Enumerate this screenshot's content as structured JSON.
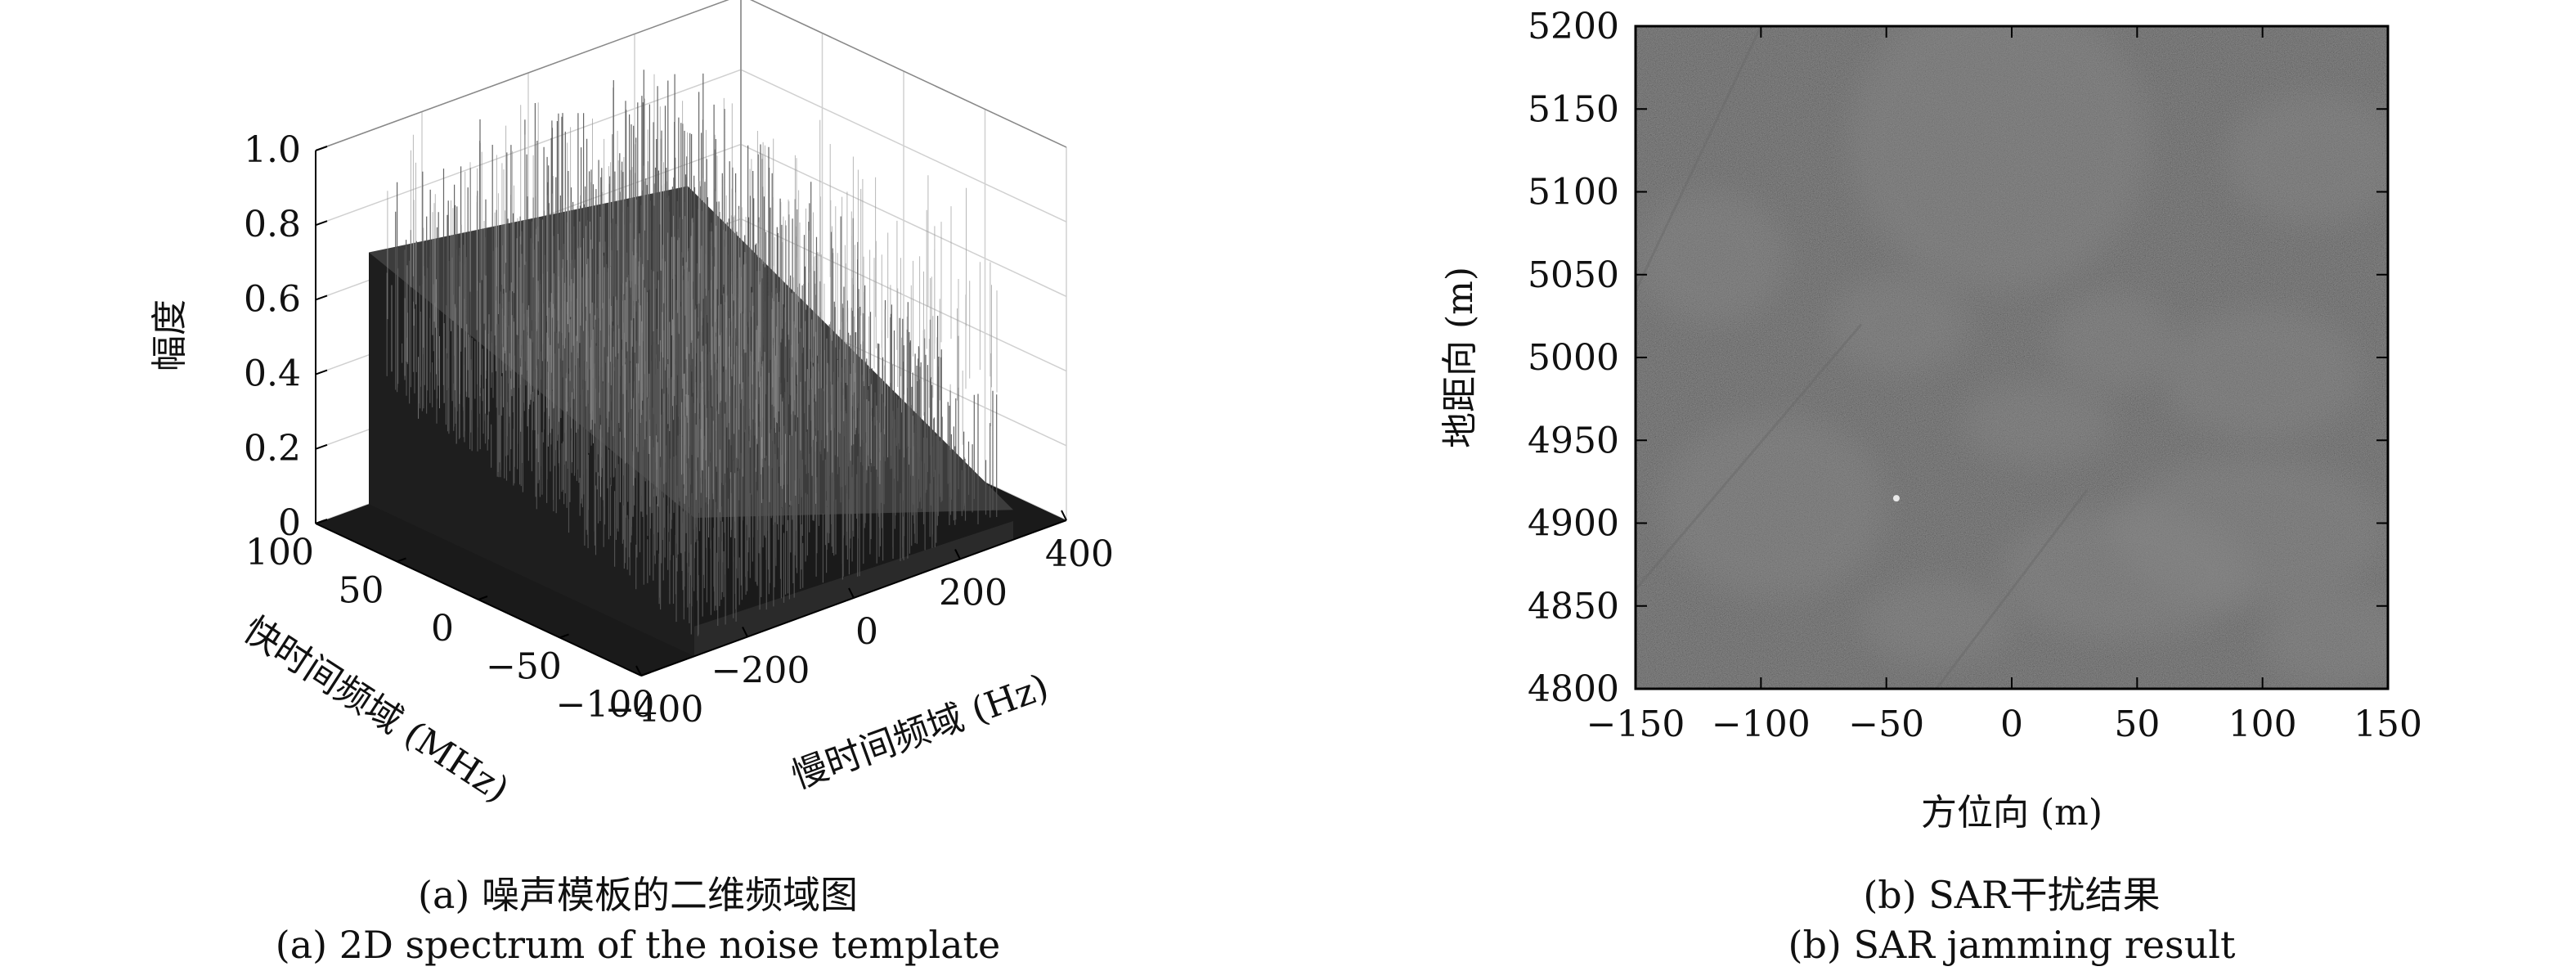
{
  "chart_data": [
    {
      "type": "surface3d",
      "zlabel": "幅度",
      "xlabel": "快时间频域 (MHz)",
      "ylabel": "慢时间频域 (Hz)",
      "zlim": [
        0,
        1.0
      ],
      "zticks": [
        "0",
        "0.2",
        "0.4",
        "0.6",
        "0.8",
        "1.0"
      ],
      "xlim": [
        -100,
        100
      ],
      "xticks": [
        "100",
        "50",
        "0",
        "−50",
        "−100"
      ],
      "ylim": [
        -400,
        400
      ],
      "yticks": [
        "−400",
        "−200",
        "0",
        "200",
        "400"
      ],
      "grid": true,
      "noise_band": {
        "fast_time_range": [
          -100,
          100
        ],
        "slow_time_range": [
          -300,
          300
        ],
        "amplitude_range": [
          0.4,
          0.95
        ]
      },
      "color": "#1a1a1a",
      "caption_cn": "(a) 噪声模板的二维频域图",
      "caption_en": "(a) 2D spectrum of the noise template"
    },
    {
      "type": "heatmap",
      "xlabel": "方位向 (m)",
      "ylabel": "地距向 (m)",
      "xlim": [
        -150,
        150
      ],
      "ylim": [
        4800,
        5200
      ],
      "xticks": [
        "−150",
        "−100",
        "−50",
        "0",
        "50",
        "100",
        "150"
      ],
      "yticks": [
        "4800",
        "4850",
        "4900",
        "4950",
        "5000",
        "5050",
        "5100",
        "5150",
        "5200"
      ],
      "colormap": "gray",
      "background_color": "#2e2e2e",
      "caption_cn": "(b) SAR干扰结果",
      "caption_en": "(b) SAR jamming result"
    }
  ]
}
